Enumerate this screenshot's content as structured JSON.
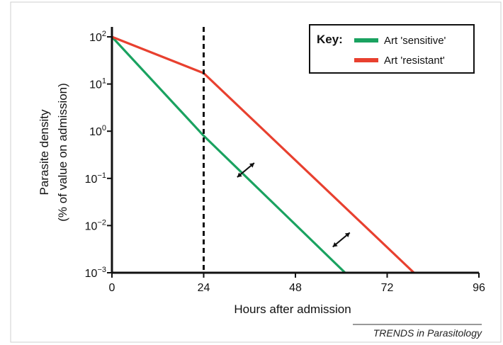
{
  "chart_data": {
    "type": "line",
    "xlabel": "Hours after admission",
    "ylabel_lines": [
      "Parasite density",
      "(% of value on admission)"
    ],
    "x_ticks": [
      "0",
      "24",
      "48",
      "72",
      "96"
    ],
    "xlim": [
      0,
      96
    ],
    "y_scale": "log",
    "ylim": [
      0.001,
      100
    ],
    "y_ticks": [
      {
        "value": 100,
        "base": "10",
        "exp": "2"
      },
      {
        "value": 10,
        "base": "10",
        "exp": "1"
      },
      {
        "value": 1,
        "base": "10",
        "exp": "0"
      },
      {
        "value": 0.1,
        "base": "10",
        "exp": "−1"
      },
      {
        "value": 0.01,
        "base": "10",
        "exp": "−2"
      },
      {
        "value": 0.001,
        "base": "10",
        "exp": "−3"
      }
    ],
    "reference_line_x": 24,
    "legend": {
      "title": "Key:",
      "position": "top-right",
      "entries": [
        {
          "label": "Art 'sensitive'",
          "series": 0
        },
        {
          "label": "Art 'resistant'",
          "series": 1
        }
      ]
    },
    "series": [
      {
        "name": "Art 'sensitive'",
        "color": "#1aa260",
        "points": [
          [
            0,
            100
          ],
          [
            24,
            0.8
          ],
          [
            61,
            0.001
          ]
        ]
      },
      {
        "name": "Art 'resistant'",
        "color": "#e8402f",
        "points": [
          [
            0,
            100
          ],
          [
            24,
            17
          ],
          [
            79,
            0.001
          ]
        ]
      }
    ],
    "annotations": [
      {
        "type": "double-arrow",
        "x": 35,
        "y": 0.15
      },
      {
        "type": "double-arrow",
        "x": 60,
        "y": 0.005
      }
    ],
    "source": "TRENDS in Parasitology"
  }
}
